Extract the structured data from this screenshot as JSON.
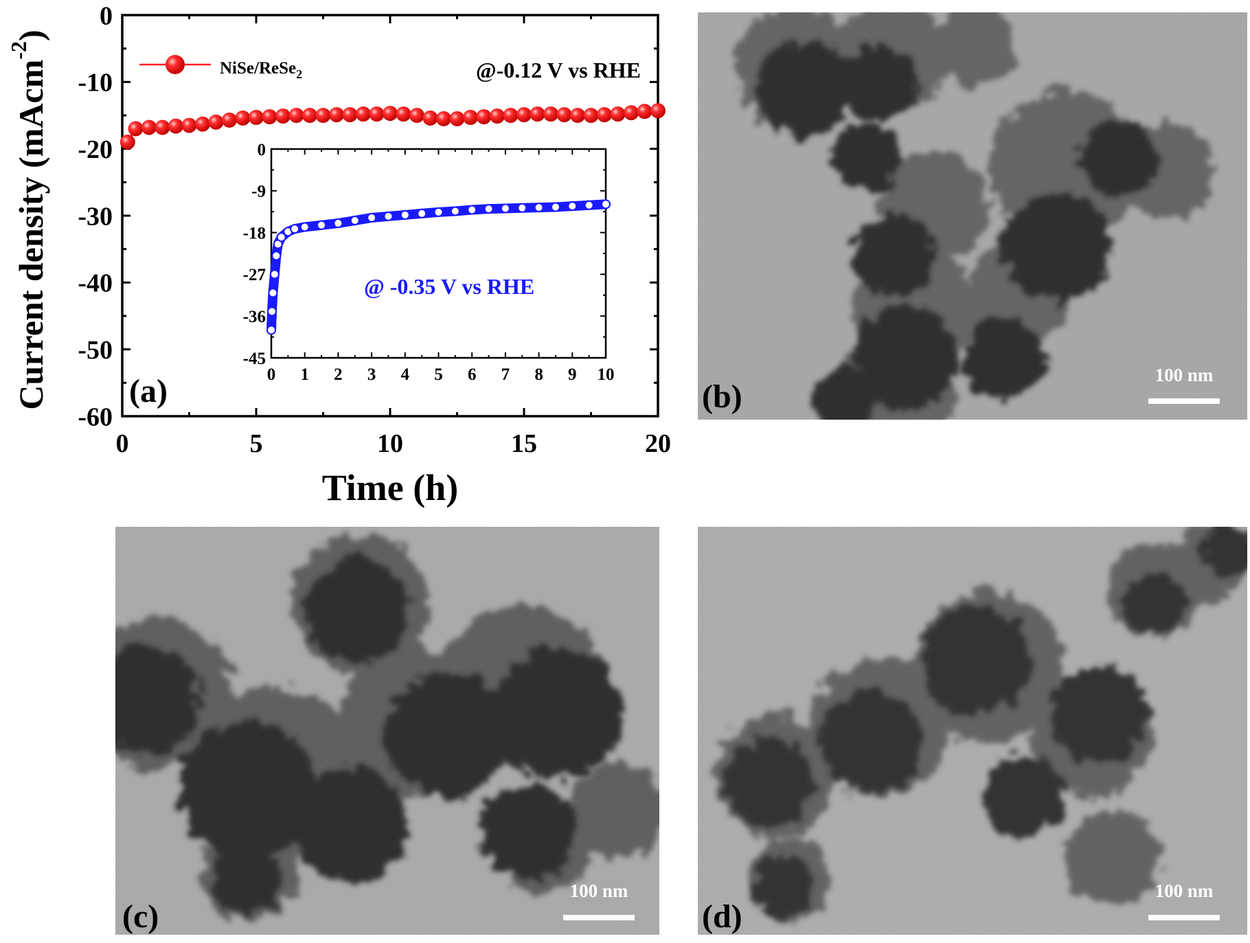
{
  "figure": {
    "panels": {
      "a": {
        "label": "(a)",
        "legend": {
          "series_name": "NiSe/ReSe",
          "series_subscript": "2"
        },
        "annotation": "@-0.12 V vs RHE",
        "inset_annotation": "@ -0.35 V vs RHE",
        "xlabel": "Time (h)",
        "ylabel_main": "Current density (mAcm",
        "ylabel_sup": "-2",
        "ylabel_close": ")"
      },
      "b": {
        "label": "(b)",
        "scale_bar": "100 nm"
      },
      "c": {
        "label": "(c)",
        "scale_bar": "100 nm"
      },
      "d": {
        "label": "(d)",
        "scale_bar": "100 nm"
      }
    },
    "colors": {
      "main_series": "#ff2020",
      "inset_series": "#1a1aff",
      "tem_background": "#a5a5a5",
      "particle_dark": "#262626"
    }
  },
  "chart_data": [
    {
      "type": "line",
      "xlabel": "Time (h)",
      "ylabel": "Current density (mAcm-2)",
      "xlim": [
        0,
        20
      ],
      "ylim": [
        -60,
        0
      ],
      "xticks": [
        0,
        5,
        10,
        15,
        20
      ],
      "yticks": [
        0,
        -10,
        -20,
        -30,
        -40,
        -50,
        -60
      ],
      "series": [
        {
          "name": "NiSe/ReSe2",
          "x": [
            0.2,
            0.5,
            1,
            1.5,
            2,
            2.5,
            3,
            3.5,
            4,
            4.5,
            5,
            5.5,
            6,
            6.5,
            7,
            7.5,
            8,
            8.5,
            9,
            9.5,
            10,
            10.5,
            11,
            11.5,
            12,
            12.5,
            13,
            13.5,
            14,
            14.5,
            15,
            15.5,
            16,
            16.5,
            17,
            17.5,
            18,
            18.5,
            19,
            19.5,
            20
          ],
          "y": [
            -19,
            -17,
            -16.8,
            -16.8,
            -16.6,
            -16.5,
            -16.3,
            -16,
            -15.7,
            -15.4,
            -15.3,
            -15.2,
            -15.1,
            -15,
            -15,
            -15,
            -14.9,
            -14.9,
            -14.8,
            -14.8,
            -14.7,
            -14.8,
            -15,
            -15.4,
            -15.5,
            -15.5,
            -15.3,
            -15.2,
            -15.1,
            -15,
            -14.9,
            -14.8,
            -14.8,
            -14.9,
            -15,
            -15,
            -14.9,
            -14.8,
            -14.6,
            -14.4,
            -14.3
          ]
        }
      ]
    },
    {
      "type": "line",
      "xlim": [
        0,
        10
      ],
      "ylim": [
        -45,
        0
      ],
      "xticks": [
        0,
        1,
        2,
        3,
        4,
        5,
        6,
        7,
        8,
        9,
        10
      ],
      "yticks": [
        0,
        -9,
        -18,
        -27,
        -36,
        -45
      ],
      "annotation": "@ -0.35 V vs RHE",
      "series": [
        {
          "x": [
            0,
            0.02,
            0.05,
            0.1,
            0.15,
            0.2,
            0.3,
            0.5,
            0.7,
            1,
            1.5,
            2,
            2.5,
            3,
            3.5,
            4,
            4.5,
            5,
            5.5,
            6,
            6.5,
            7,
            7.5,
            8,
            8.5,
            9,
            9.5,
            10
          ],
          "y": [
            -39,
            -35,
            -31,
            -27,
            -23,
            -20.5,
            -19,
            -17.8,
            -17.2,
            -16.8,
            -16.4,
            -16,
            -15.4,
            -14.8,
            -14.5,
            -14.2,
            -13.9,
            -13.6,
            -13.4,
            -13.1,
            -12.9,
            -12.8,
            -12.7,
            -12.6,
            -12.5,
            -12.3,
            -12.1,
            -11.9
          ]
        }
      ]
    }
  ]
}
